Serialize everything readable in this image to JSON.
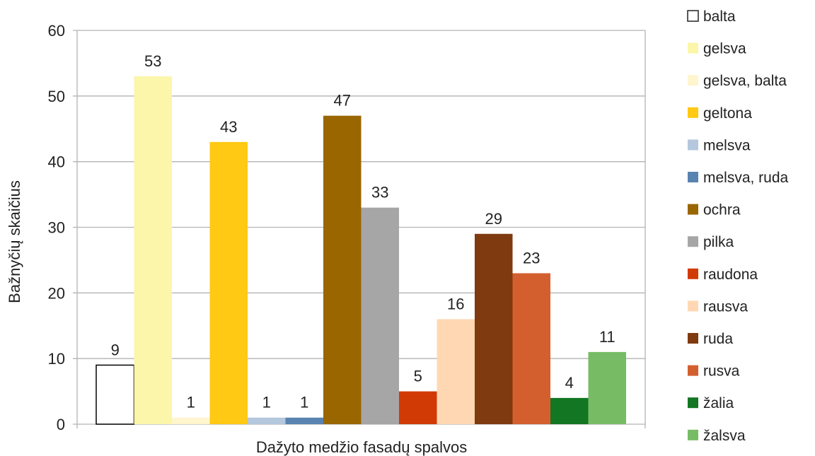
{
  "chart_data": {
    "type": "bar",
    "xlabel": "Dažyto medžio fasadų spalvos",
    "ylabel": "Bažnyčių skaičius",
    "ylim": [
      0,
      60
    ],
    "yticks": [
      0,
      10,
      20,
      30,
      40,
      50,
      60
    ],
    "grid": true,
    "legend_position": "right",
    "series": [
      {
        "name": "balta",
        "value": 9,
        "color": "#ffffff",
        "outline": "#000000"
      },
      {
        "name": "gelsva",
        "value": 53,
        "color": "#fbf6a9"
      },
      {
        "name": "gelsva, balta",
        "value": 1,
        "color": "#fff5ce"
      },
      {
        "name": "geltona",
        "value": 43,
        "color": "#ffc914"
      },
      {
        "name": "melsva",
        "value": 1,
        "color": "#b4c7dc"
      },
      {
        "name": "melsva, ruda",
        "value": 1,
        "color": "#5983b0"
      },
      {
        "name": "ochra",
        "value": 47,
        "color": "#996600"
      },
      {
        "name": "pilka",
        "value": 33,
        "color": "#a6a6a6"
      },
      {
        "name": "raudona",
        "value": 5,
        "color": "#d23a05"
      },
      {
        "name": "rausva",
        "value": 16,
        "color": "#ffd8b3"
      },
      {
        "name": "ruda",
        "value": 29,
        "color": "#7f3a0f"
      },
      {
        "name": "rusva",
        "value": 23,
        "color": "#d35f2f"
      },
      {
        "name": "žalia",
        "value": 4,
        "color": "#127622"
      },
      {
        "name": "žalsva",
        "value": 11,
        "color": "#77bc65"
      }
    ]
  }
}
